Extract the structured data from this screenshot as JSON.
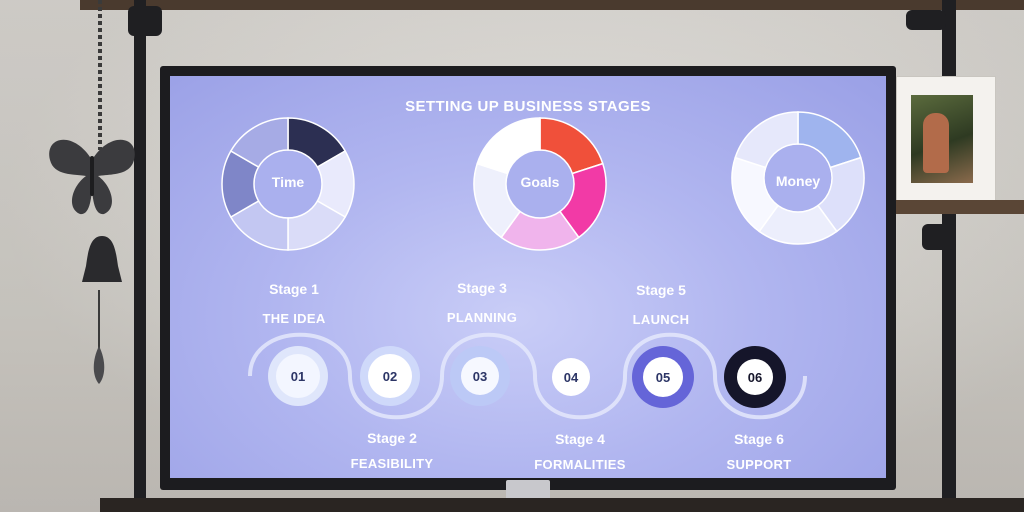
{
  "slide": {
    "title": "SETTING UP BUSINESS STAGES",
    "donuts": [
      {
        "label": "Time",
        "colors": [
          "#2c2f52",
          "#e9eafc",
          "#dadcf8",
          "#c3c7f2",
          "#7f86c8",
          "#a6abe5"
        ]
      },
      {
        "label": "Goals",
        "colors": [
          "#f0503a",
          "#f23aa6",
          "#f0b4ec",
          "#eef0fc",
          "#ffffff"
        ]
      },
      {
        "label": "Money",
        "colors": [
          "#9fb4ee",
          "#dde0fa",
          "#eceefc",
          "#f7f8ff",
          "#e6e8fb"
        ]
      }
    ],
    "stages_top": [
      {
        "stage": "Stage 1",
        "name": "THE IDEA"
      },
      {
        "stage": "Stage 3",
        "name": "PLANNING"
      },
      {
        "stage": "Stage 5",
        "name": "LAUNCH"
      }
    ],
    "stages_bottom": [
      {
        "stage": "Stage 2",
        "name": "FEASIBILITY"
      },
      {
        "stage": "Stage 4",
        "name": "FORMALITIES"
      },
      {
        "stage": "Stage 6",
        "name": "SUPPORT"
      }
    ],
    "nodes": [
      {
        "num": "01",
        "ring": "#dfe6fb",
        "fill": "#f3f6ff",
        "text": "#2c3566"
      },
      {
        "num": "02",
        "ring": "#cfd9fa",
        "fill": "#ffffff",
        "text": "#2c3566"
      },
      {
        "num": "03",
        "ring": "#bcc9f6",
        "fill": "#f6f8ff",
        "text": "#2c3566"
      },
      {
        "num": "04",
        "ring": "#ffffff",
        "fill": "#ffffff",
        "text": "#2c3566"
      },
      {
        "num": "05",
        "ring": "#6565d8",
        "fill": "#ffffff",
        "text": "#2c3566"
      },
      {
        "num": "06",
        "ring": "#15152a",
        "fill": "#ffffff",
        "text": "#15152a"
      }
    ]
  }
}
